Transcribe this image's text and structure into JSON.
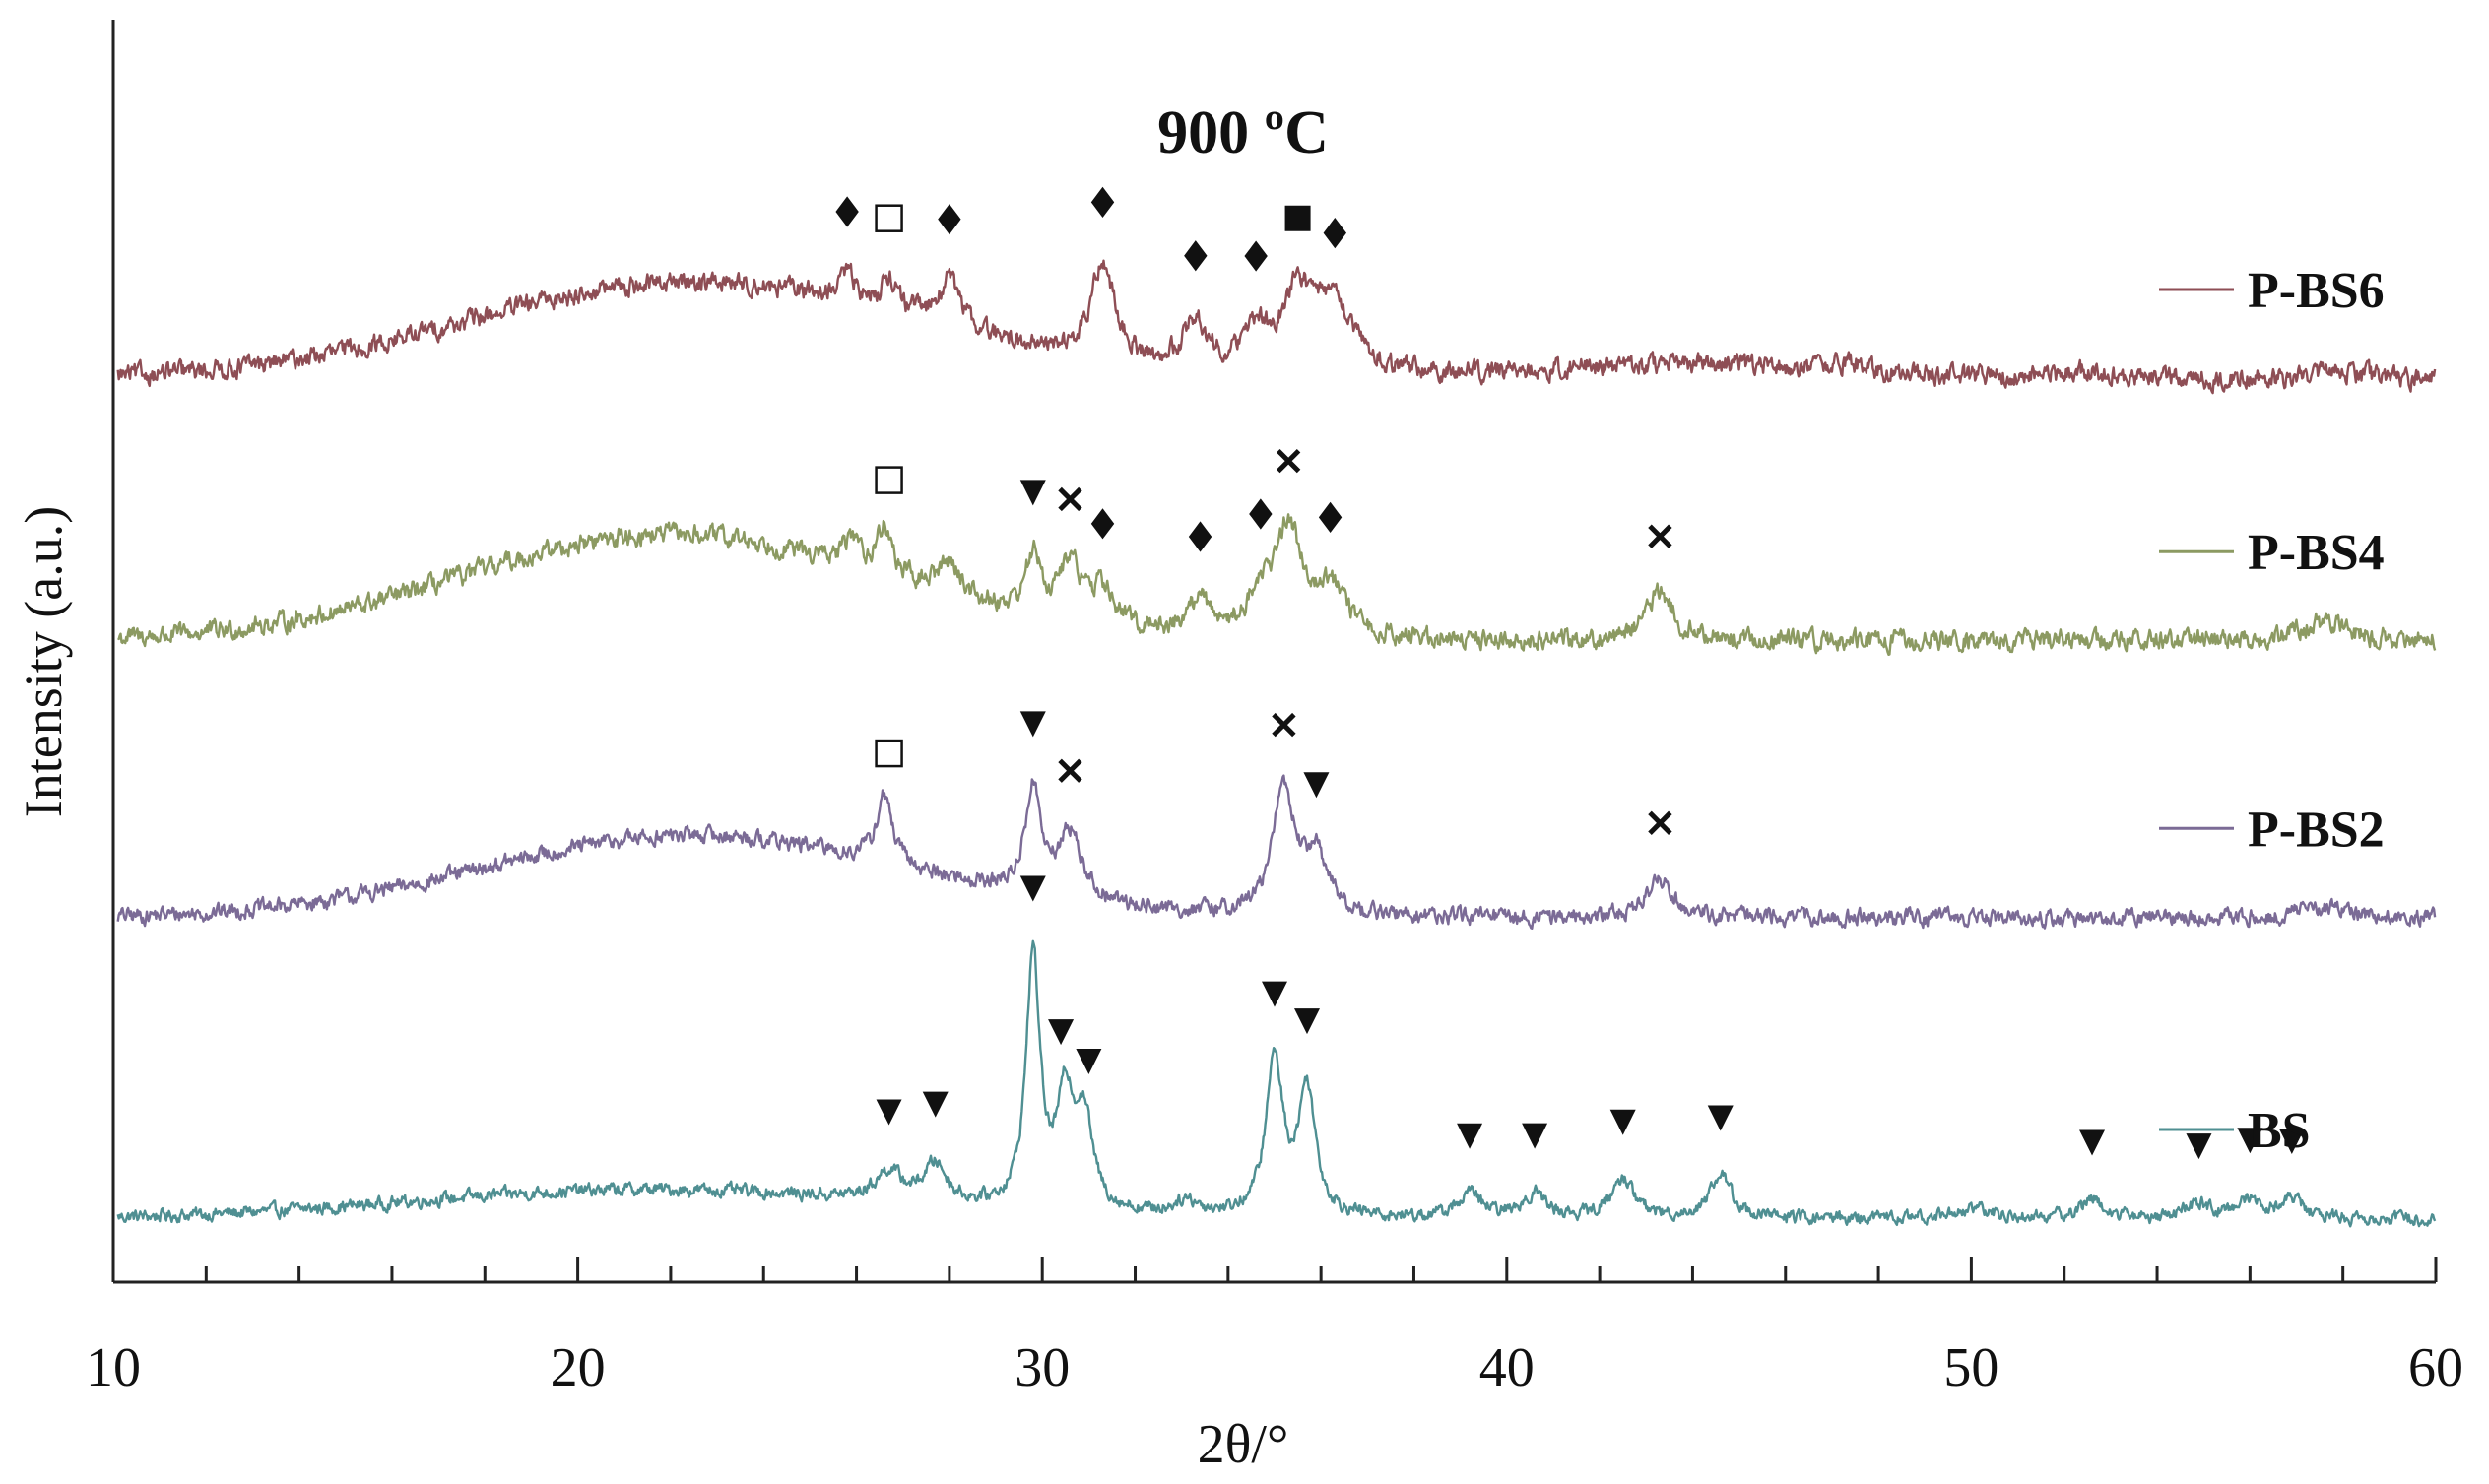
{
  "chart_data": {
    "type": "line",
    "title": "900 ºC",
    "xlabel": "2θ/°",
    "ylabel": "Intensity (a.u.)",
    "xlim": [
      10,
      60
    ],
    "xticks": [
      10,
      20,
      30,
      40,
      50,
      60
    ],
    "x_minor_step": 2,
    "ylim": [
      0,
      1.3
    ],
    "yticks": [],
    "grid": false,
    "legend_position": "right",
    "legend_entries": [
      "P-BS6",
      "P-BS4",
      "P-BS2",
      "BS"
    ],
    "series": [
      {
        "name": "BS",
        "color": "#4f8f92",
        "baseline": 0.065,
        "noise": 0.004,
        "broad_humps": [
          [
            21.5,
            5.0,
            0.03
          ]
        ],
        "peaks": [
          [
            26.7,
            0.35,
            0.03
          ],
          [
            27.7,
            0.3,
            0.04
          ],
          [
            29.8,
            0.18,
            0.26
          ],
          [
            30.5,
            0.22,
            0.11
          ],
          [
            30.9,
            0.22,
            0.09
          ],
          [
            33.1,
            0.3,
            0.015
          ],
          [
            35.0,
            0.22,
            0.16
          ],
          [
            35.7,
            0.22,
            0.13
          ],
          [
            39.2,
            0.3,
            0.025
          ],
          [
            40.6,
            0.3,
            0.025
          ],
          [
            42.5,
            0.3,
            0.04
          ],
          [
            44.6,
            0.28,
            0.045
          ],
          [
            50.0,
            0.5,
            0.01
          ],
          [
            52.6,
            0.3,
            0.02
          ],
          [
            54.9,
            0.3,
            0.015
          ],
          [
            56.0,
            0.3,
            0.02
          ],
          [
            56.9,
            0.3,
            0.02
          ]
        ],
        "markers": [
          [
            26.7,
            "▼"
          ],
          [
            27.7,
            "▼"
          ],
          [
            29.8,
            "▼"
          ],
          [
            30.4,
            "▼"
          ],
          [
            31.0,
            "▼"
          ],
          [
            35.0,
            "▼"
          ],
          [
            35.7,
            "▼"
          ],
          [
            39.2,
            "▼"
          ],
          [
            40.6,
            "▼"
          ],
          [
            42.5,
            "▼"
          ],
          [
            44.6,
            "▼"
          ],
          [
            52.6,
            "▼"
          ],
          [
            54.9,
            "▼"
          ],
          [
            56.0,
            "▼"
          ],
          [
            56.9,
            "▼"
          ]
        ]
      },
      {
        "name": "P-BS2",
        "color": "#7b6b96",
        "baseline": 0.375,
        "noise": 0.005,
        "broad_humps": [
          [
            22.5,
            4.5,
            0.085
          ]
        ],
        "peaks": [
          [
            26.6,
            0.2,
            0.07
          ],
          [
            29.8,
            0.2,
            0.11
          ],
          [
            30.6,
            0.3,
            0.07
          ],
          [
            35.2,
            0.28,
            0.13
          ],
          [
            35.9,
            0.3,
            0.06
          ],
          [
            43.3,
            0.35,
            0.04
          ],
          [
            57.6,
            0.6,
            0.012
          ]
        ],
        "markers": [
          [
            26.7,
            "□"
          ],
          [
            29.8,
            "▼"
          ],
          [
            30.6,
            "×"
          ],
          [
            35.2,
            "×"
          ],
          [
            35.9,
            "▼"
          ],
          [
            43.3,
            "×"
          ]
        ]
      },
      {
        "name": "P-BS4",
        "color": "#8c9a62",
        "baseline": 0.66,
        "noise": 0.006,
        "broad_humps": [
          [
            22.0,
            4.5,
            0.11
          ]
        ],
        "peaks": [
          [
            25.9,
            0.2,
            0.03
          ],
          [
            26.6,
            0.2,
            0.05
          ],
          [
            28.0,
            0.3,
            0.035
          ],
          [
            29.8,
            0.2,
            0.06
          ],
          [
            30.6,
            0.3,
            0.06
          ],
          [
            31.3,
            0.3,
            0.035
          ],
          [
            33.4,
            0.3,
            0.035
          ],
          [
            34.7,
            0.3,
            0.035
          ],
          [
            35.3,
            0.35,
            0.11
          ],
          [
            36.2,
            0.4,
            0.05
          ],
          [
            43.3,
            0.35,
            0.05
          ],
          [
            57.6,
            0.6,
            0.02
          ]
        ],
        "markers": [
          [
            26.7,
            "□"
          ],
          [
            29.8,
            "▼"
          ],
          [
            30.6,
            "×"
          ],
          [
            31.3,
            "◆"
          ],
          [
            33.4,
            "◆"
          ],
          [
            34.7,
            "◆"
          ],
          [
            35.3,
            "×"
          ],
          [
            36.2,
            "◆"
          ],
          [
            43.3,
            "×"
          ]
        ]
      },
      {
        "name": "P-BS6",
        "color": "#8e4e55",
        "baseline": 0.93,
        "noise": 0.006,
        "broad_humps": [
          [
            22.5,
            4.8,
            0.1
          ],
          [
            44.0,
            3.0,
            0.015
          ]
        ],
        "peaks": [
          [
            25.8,
            0.2,
            0.03
          ],
          [
            26.7,
            0.2,
            0.035
          ],
          [
            28.0,
            0.3,
            0.05
          ],
          [
            31.3,
            0.3,
            0.1
          ],
          [
            33.3,
            0.3,
            0.05
          ],
          [
            34.6,
            0.3,
            0.04
          ],
          [
            35.5,
            0.4,
            0.08
          ],
          [
            36.3,
            0.5,
            0.07
          ],
          [
            47.4,
            0.4,
            0.008
          ],
          [
            52.5,
            0.5,
            0.008
          ],
          [
            57.8,
            0.6,
            0.008
          ]
        ],
        "markers": [
          [
            25.8,
            "◆"
          ],
          [
            26.7,
            "□"
          ],
          [
            28.0,
            "◆"
          ],
          [
            31.3,
            "◆"
          ],
          [
            33.3,
            "◆"
          ],
          [
            34.6,
            "◆"
          ],
          [
            35.5,
            "■"
          ],
          [
            36.3,
            "◆"
          ]
        ]
      }
    ]
  }
}
